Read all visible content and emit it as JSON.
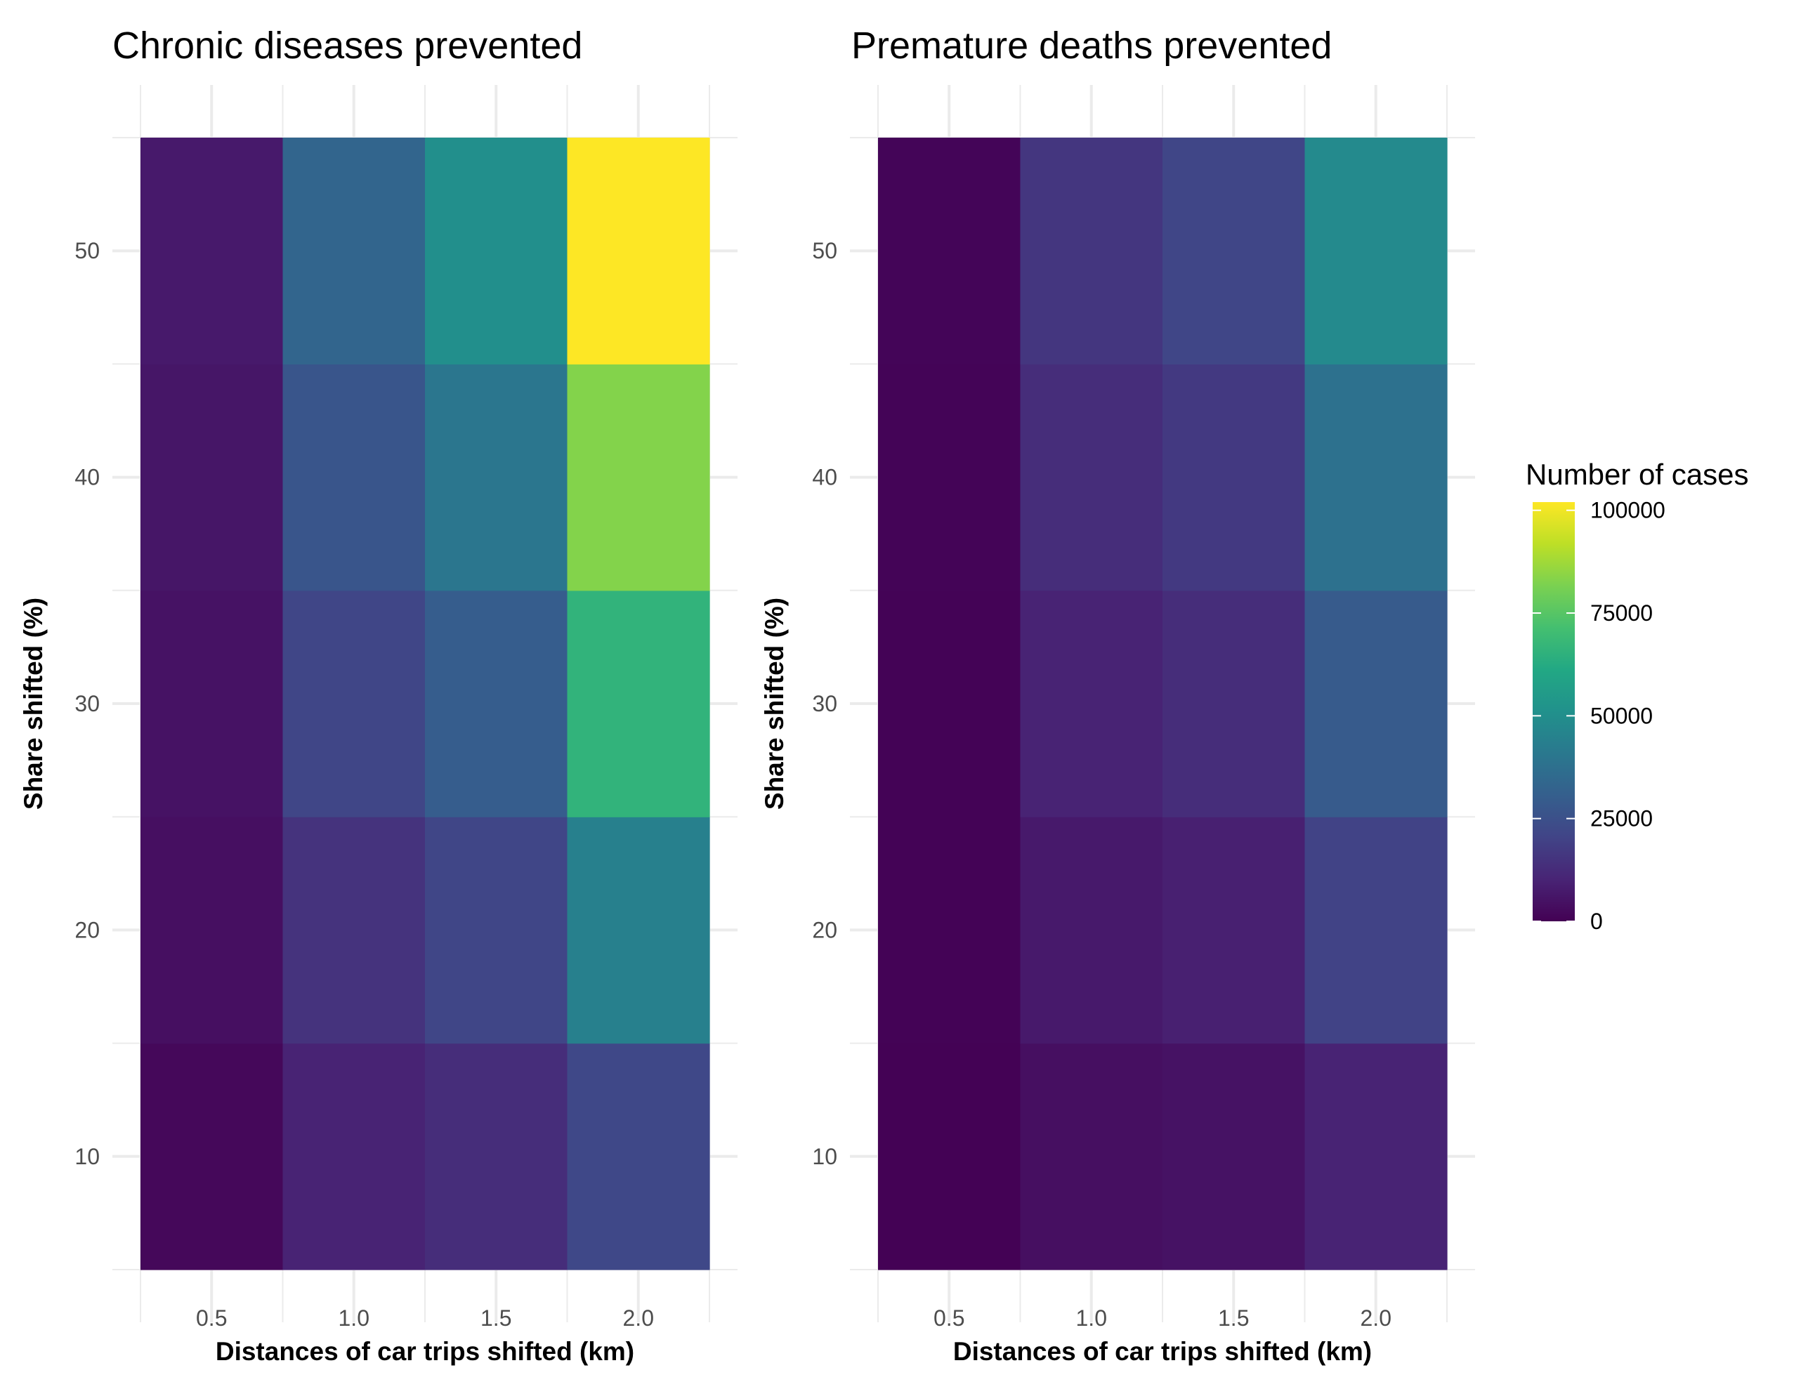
{
  "chart_data": [
    {
      "type": "heatmap",
      "title": "Chronic diseases prevented",
      "xlabel": "Distances of car trips shifted (km)",
      "ylabel": "Share shifted (%)",
      "x": [
        0.5,
        1.0,
        1.5,
        2.0
      ],
      "x_tick_labels": [
        "0.5",
        "1.0",
        "1.5",
        "2.0"
      ],
      "y": [
        10,
        20,
        30,
        40,
        50
      ],
      "y_tick_labels": [
        "10",
        "20",
        "30",
        "40",
        "50"
      ],
      "xlim": [
        0.25,
        2.25
      ],
      "ylim": [
        5,
        55
      ],
      "grid": true,
      "cells": [
        {
          "x": 0.5,
          "y": 10,
          "value": 2000
        },
        {
          "x": 0.5,
          "y": 20,
          "value": 4000
        },
        {
          "x": 0.5,
          "y": 30,
          "value": 5000
        },
        {
          "x": 0.5,
          "y": 40,
          "value": 6000
        },
        {
          "x": 0.5,
          "y": 50,
          "value": 7000
        },
        {
          "x": 1.0,
          "y": 10,
          "value": 10000
        },
        {
          "x": 1.0,
          "y": 20,
          "value": 15000
        },
        {
          "x": 1.0,
          "y": 30,
          "value": 21000
        },
        {
          "x": 1.0,
          "y": 40,
          "value": 27000
        },
        {
          "x": 1.0,
          "y": 50,
          "value": 33000
        },
        {
          "x": 1.5,
          "y": 10,
          "value": 13000
        },
        {
          "x": 1.5,
          "y": 20,
          "value": 21000
        },
        {
          "x": 1.5,
          "y": 30,
          "value": 30000
        },
        {
          "x": 1.5,
          "y": 40,
          "value": 40000
        },
        {
          "x": 1.5,
          "y": 50,
          "value": 50000
        },
        {
          "x": 2.0,
          "y": 10,
          "value": 22000
        },
        {
          "x": 2.0,
          "y": 20,
          "value": 44000
        },
        {
          "x": 2.0,
          "y": 30,
          "value": 66000
        },
        {
          "x": 2.0,
          "y": 40,
          "value": 83000
        },
        {
          "x": 2.0,
          "y": 50,
          "value": 102000
        }
      ]
    },
    {
      "type": "heatmap",
      "title": "Premature deaths prevented",
      "xlabel": "Distances of car trips shifted (km)",
      "ylabel": "Share shifted (%)",
      "x": [
        0.5,
        1.0,
        1.5,
        2.0
      ],
      "x_tick_labels": [
        "0.5",
        "1.0",
        "1.5",
        "2.0"
      ],
      "y": [
        10,
        20,
        30,
        40,
        50
      ],
      "y_tick_labels": [
        "10",
        "20",
        "30",
        "40",
        "50"
      ],
      "xlim": [
        0.25,
        2.25
      ],
      "ylim": [
        5,
        55
      ],
      "grid": true,
      "cells": [
        {
          "x": 0.5,
          "y": 10,
          "value": 300
        },
        {
          "x": 0.5,
          "y": 20,
          "value": 500
        },
        {
          "x": 0.5,
          "y": 30,
          "value": 700
        },
        {
          "x": 0.5,
          "y": 40,
          "value": 900
        },
        {
          "x": 0.5,
          "y": 50,
          "value": 1100
        },
        {
          "x": 1.0,
          "y": 10,
          "value": 4000
        },
        {
          "x": 1.0,
          "y": 20,
          "value": 7000
        },
        {
          "x": 1.0,
          "y": 30,
          "value": 10000
        },
        {
          "x": 1.0,
          "y": 40,
          "value": 13000
        },
        {
          "x": 1.0,
          "y": 50,
          "value": 16000
        },
        {
          "x": 1.5,
          "y": 10,
          "value": 5000
        },
        {
          "x": 1.5,
          "y": 20,
          "value": 9000
        },
        {
          "x": 1.5,
          "y": 30,
          "value": 13000
        },
        {
          "x": 1.5,
          "y": 40,
          "value": 17000
        },
        {
          "x": 1.5,
          "y": 50,
          "value": 21000
        },
        {
          "x": 2.0,
          "y": 10,
          "value": 10000
        },
        {
          "x": 2.0,
          "y": 20,
          "value": 20000
        },
        {
          "x": 2.0,
          "y": 30,
          "value": 29000
        },
        {
          "x": 2.0,
          "y": 40,
          "value": 38000
        },
        {
          "x": 2.0,
          "y": 50,
          "value": 48000
        }
      ]
    }
  ],
  "legend": {
    "title": "Number of cases",
    "placement": "right",
    "scale": "viridis",
    "range": [
      0,
      102000
    ],
    "breaks": [
      0,
      25000,
      50000,
      75000,
      100000
    ],
    "break_labels": [
      "0",
      "25000",
      "50000",
      "75000",
      "100000"
    ]
  }
}
